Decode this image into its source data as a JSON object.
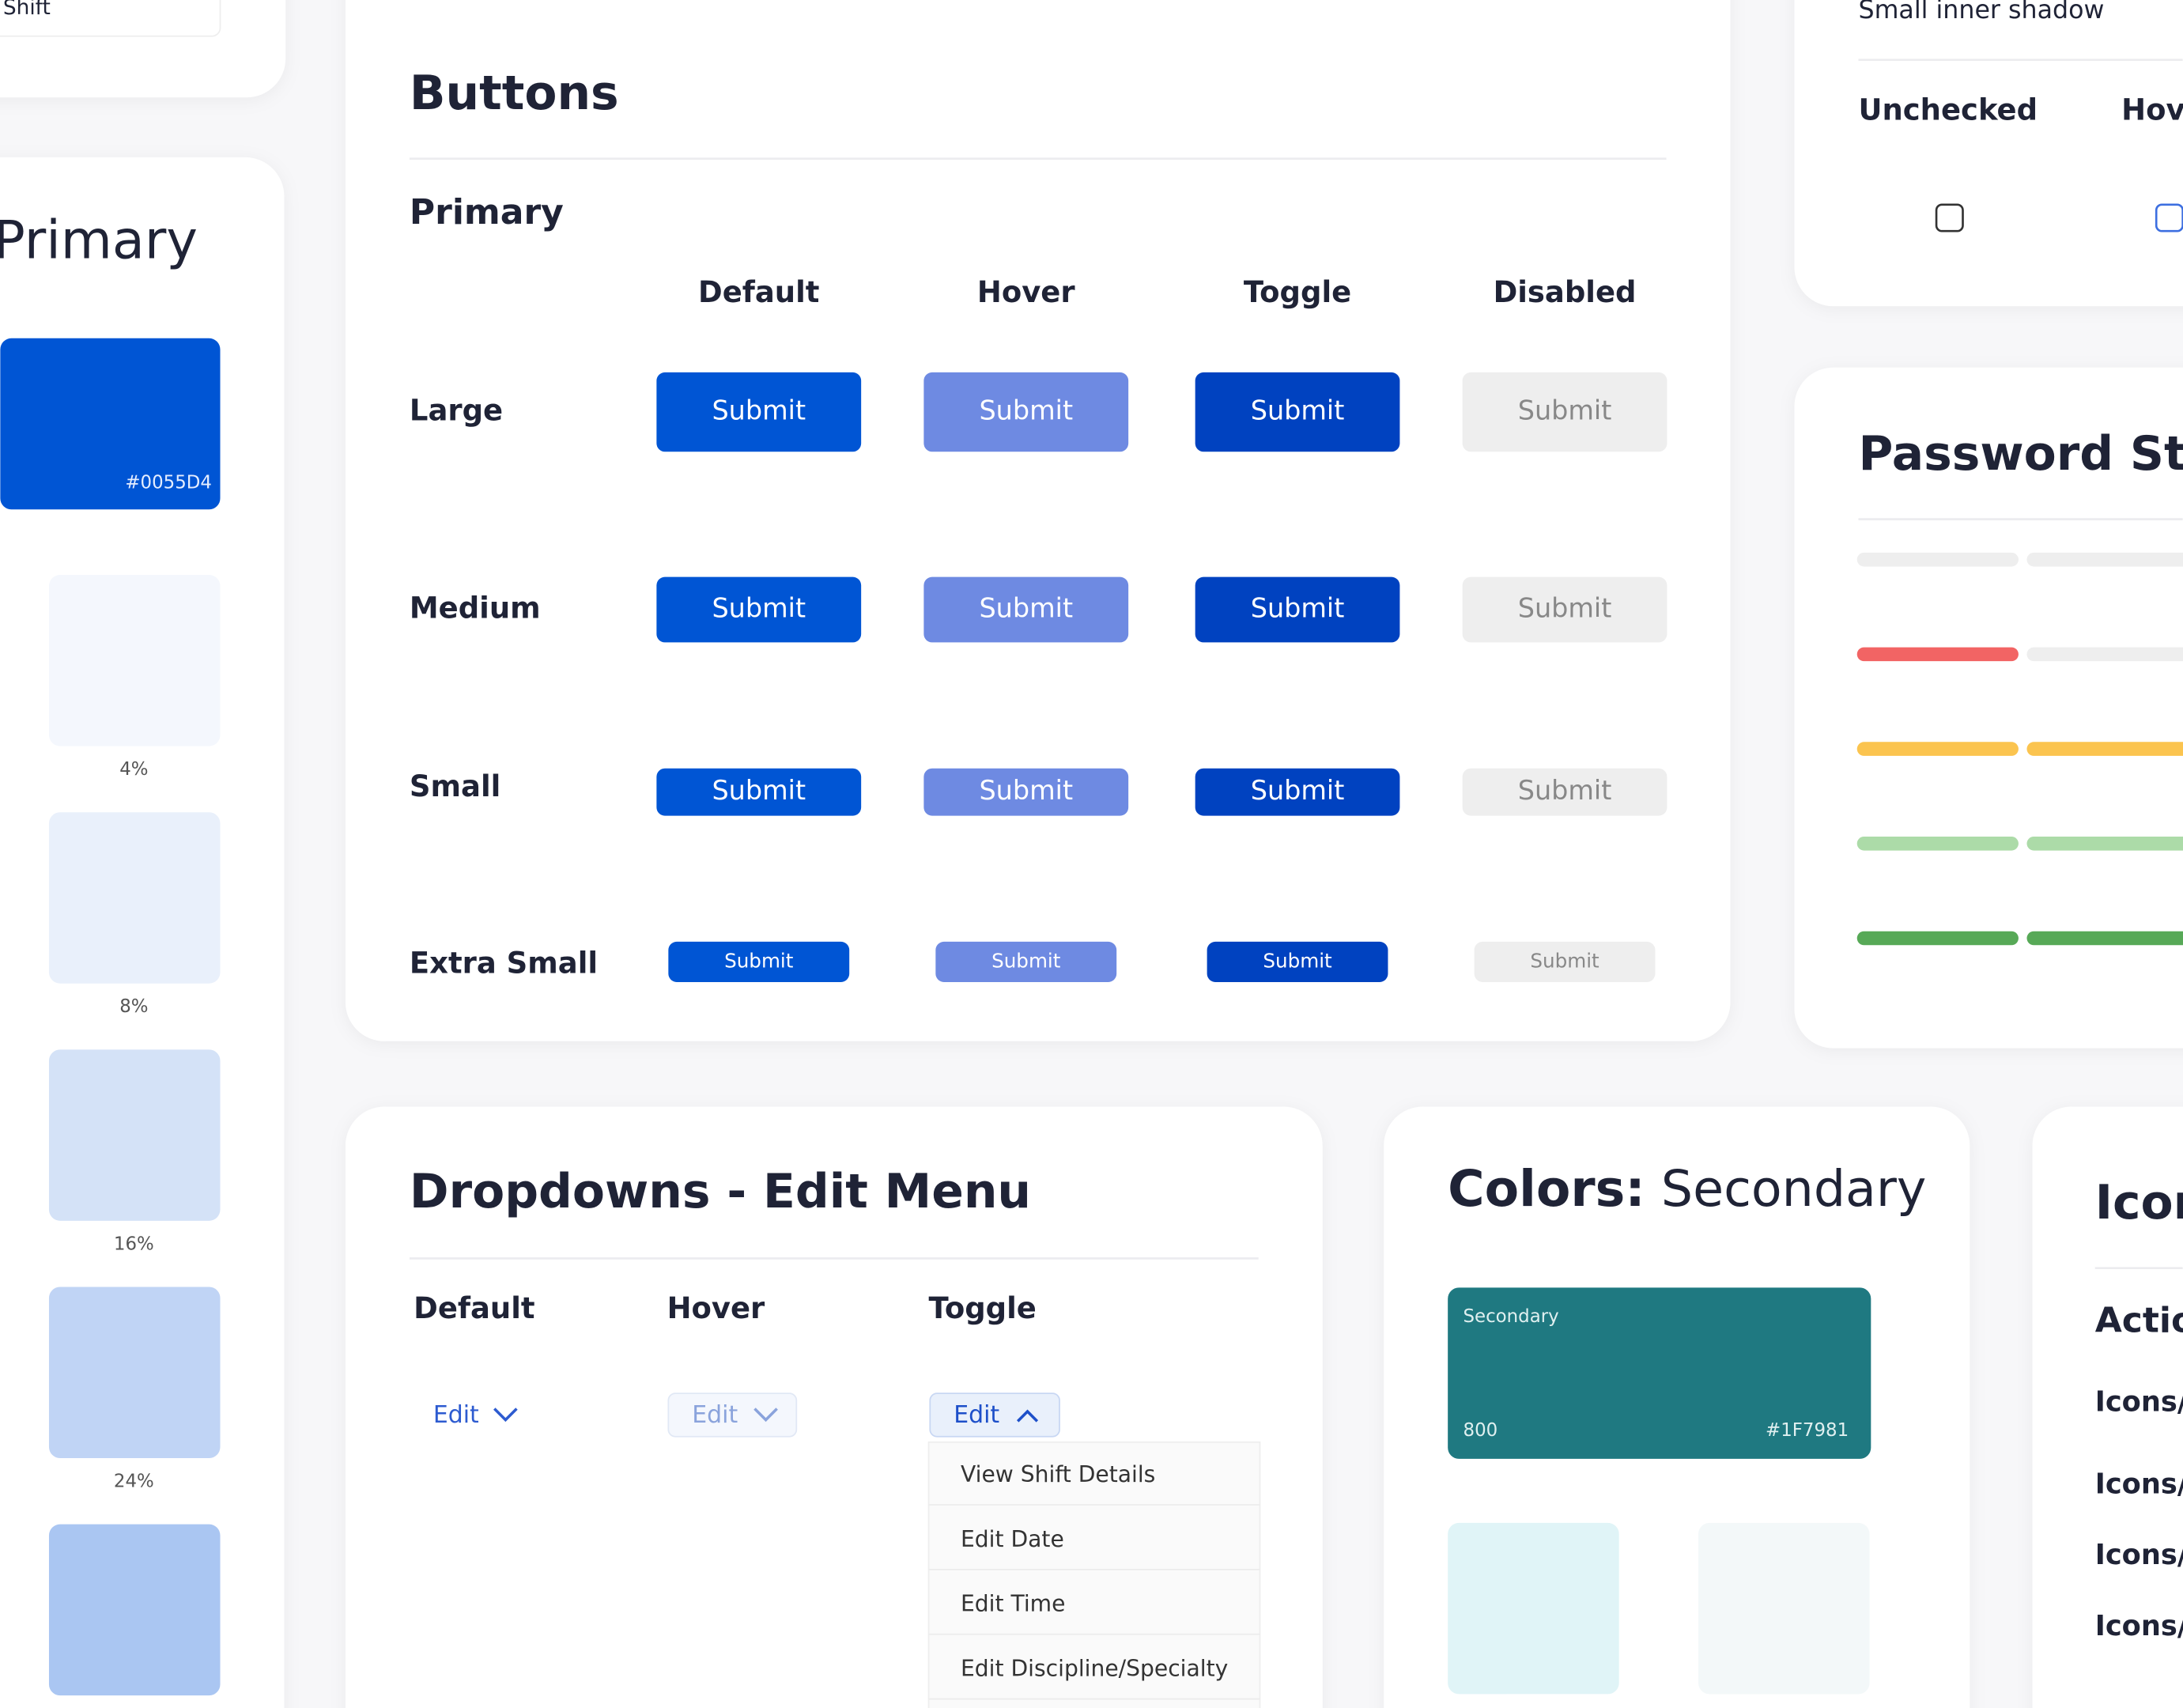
{
  "shift_card": {
    "label": "Shift"
  },
  "primary_palette": {
    "title": "Primary",
    "main_hex": "#0055D4",
    "swatch_labels": [
      "4%",
      "8%",
      "16%",
      "24%"
    ]
  },
  "buttons": {
    "title": "Buttons",
    "section": "Primary",
    "columns": [
      "Default",
      "Hover",
      "Toggle",
      "Disabled"
    ],
    "rows": [
      "Large",
      "Medium",
      "Small",
      "Extra Small"
    ],
    "button_label": "Submit"
  },
  "checkbox_card": {
    "shadow_label": "Small inner shadow",
    "states": [
      "Unchecked",
      "Hover"
    ]
  },
  "password_card": {
    "title": "Password Strength"
  },
  "dropdowns": {
    "title": "Dropdowns - Edit Menu",
    "columns": [
      "Default",
      "Hover",
      "Toggle"
    ],
    "button_label": "Edit",
    "menu_items": [
      "View Shift Details",
      "Edit Date",
      "Edit Time",
      "Edit Discipline/Specialty"
    ]
  },
  "colors_card": {
    "title_bold": "Colors:",
    "title_rest": "Secondary",
    "swatch_name": "Secondary",
    "swatch_shade": "800",
    "swatch_hex": "#1F7981"
  },
  "icons_card": {
    "title": "Icons",
    "section": "Actions",
    "items": [
      "Icons/",
      "Icons/",
      "Icons/",
      "Icons/"
    ]
  }
}
